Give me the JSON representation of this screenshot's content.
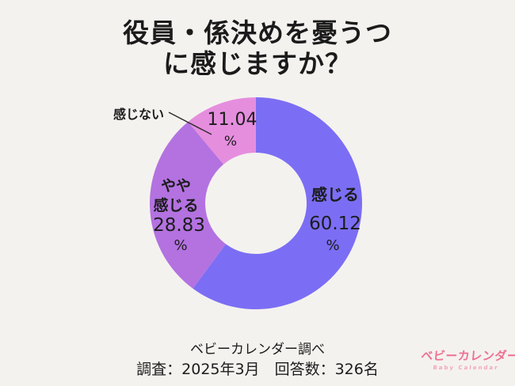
{
  "title": {
    "line1": "役員・係決めを憂うつ",
    "line2": "に感じますか？"
  },
  "chart_data": {
    "type": "pie",
    "subtype": "donut",
    "title": "役員・係決めを憂うつに感じますか？",
    "categories": [
      "感じる",
      "やや感じる",
      "感じない"
    ],
    "values": [
      60.12,
      28.83,
      11.04
    ],
    "unit": "%",
    "colors": [
      "#7b6ef4",
      "#b372e0",
      "#e58ede"
    ],
    "start_angle_deg": 0,
    "direction": "clockwise",
    "inner_radius_ratio": 0.48,
    "legend_position": "none",
    "data_labels": [
      {
        "category": "感じる",
        "value_text": "60.12",
        "unit_text": "%"
      },
      {
        "category": "やや感じる",
        "value_text": "28.83",
        "unit_text": "%"
      },
      {
        "category": "感じない",
        "value_text": "11.04",
        "unit_text": "%"
      }
    ]
  },
  "labels": {
    "right_name": "感じる",
    "right_value": "60.12",
    "right_unit": "%",
    "left_name_line1": "やや",
    "left_name_line2": "感じる",
    "left_value": "28.83",
    "left_unit": "%",
    "callout_name": "感じない",
    "top_value": "11.04",
    "top_unit": "%"
  },
  "footer": {
    "source": "ベビーカレンダー調べ",
    "survey": "調査：2025年3月　回答数：326名"
  },
  "logo": {
    "name": "ベビーカレンダー",
    "subtitle": "Baby Calendar",
    "color": "#ee7191"
  }
}
